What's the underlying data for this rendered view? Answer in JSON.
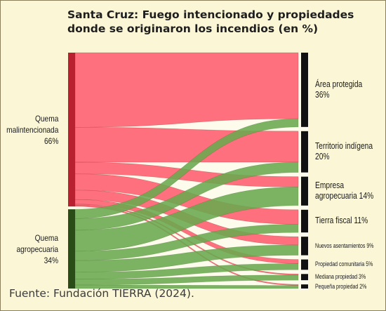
{
  "title_line1": "Santa Cruz: Fuego intencionado y propiedades",
  "title_line2": "donde se originaron los incendios (en %)",
  "source": "Fuente: Fundación TIERRA (2024).",
  "colors": {
    "malintencionada": "#ff5c6e",
    "agropecuaria": "#6aa84f",
    "bar_mal": "#b8212f",
    "bar_agro": "#2a4d17",
    "bar_target": "#111111"
  },
  "chart_data": {
    "type": "sankey",
    "unit": "%",
    "sources": [
      {
        "key": "malintencionada",
        "line1": "Quema",
        "line2": "malintencionada",
        "value_label": "66%",
        "value": 66
      },
      {
        "key": "agropecuaria",
        "line1": "Quema",
        "line2": "agropecuaria",
        "value_label": "34%",
        "value": 34
      }
    ],
    "targets": [
      {
        "key": "area_protegida",
        "line1": "Área protegida",
        "line2": "36%",
        "value": 36,
        "size": "big"
      },
      {
        "key": "territorio_indigena",
        "line1": "Territorio indígena",
        "line2": "20%",
        "value": 20,
        "size": "big"
      },
      {
        "key": "empresa_agropecuaria",
        "line1": "Empresa",
        "line2": "agropecuaria 14%",
        "value": 14,
        "size": "big"
      },
      {
        "key": "tierra_fiscal",
        "line1": "Tierra fiscal 11%",
        "line2": "",
        "value": 11,
        "size": "big"
      },
      {
        "key": "nuevos_asentamientos",
        "line1": "Nuevos asentamientos 9%",
        "line2": "",
        "value": 9,
        "size": "small"
      },
      {
        "key": "propiedad_comunitaria",
        "line1": "Propiedad comunitaria 5%",
        "line2": "",
        "value": 5,
        "size": "small"
      },
      {
        "key": "mediana_propiedad",
        "line1": "Mediana propiedad 3%",
        "line2": "",
        "value": 3,
        "size": "small"
      },
      {
        "key": "pequena_propiedad",
        "line1": "Pequeña propiedad 2%",
        "line2": "",
        "value": 2,
        "size": "small"
      }
    ],
    "flows": [
      {
        "source": "malintencionada",
        "target": "area_protegida",
        "value": 32
      },
      {
        "source": "malintencionada",
        "target": "territorio_indigena",
        "value": 15
      },
      {
        "source": "malintencionada",
        "target": "empresa_agropecuaria",
        "value": 5
      },
      {
        "source": "malintencionada",
        "target": "tierra_fiscal",
        "value": 7
      },
      {
        "source": "malintencionada",
        "target": "nuevos_asentamientos",
        "value": 4
      },
      {
        "source": "malintencionada",
        "target": "propiedad_comunitaria",
        "value": 2
      },
      {
        "source": "malintencionada",
        "target": "mediana_propiedad",
        "value": 0.5
      },
      {
        "source": "malintencionada",
        "target": "pequena_propiedad",
        "value": 0.5
      },
      {
        "source": "agropecuaria",
        "target": "area_protegida",
        "value": 4
      },
      {
        "source": "agropecuaria",
        "target": "territorio_indigena",
        "value": 5
      },
      {
        "source": "agropecuaria",
        "target": "empresa_agropecuaria",
        "value": 9
      },
      {
        "source": "agropecuaria",
        "target": "tierra_fiscal",
        "value": 4
      },
      {
        "source": "agropecuaria",
        "target": "nuevos_asentamientos",
        "value": 5
      },
      {
        "source": "agropecuaria",
        "target": "propiedad_comunitaria",
        "value": 3
      },
      {
        "source": "agropecuaria",
        "target": "mediana_propiedad",
        "value": 2.5
      },
      {
        "source": "agropecuaria",
        "target": "pequena_propiedad",
        "value": 1.5
      }
    ]
  }
}
